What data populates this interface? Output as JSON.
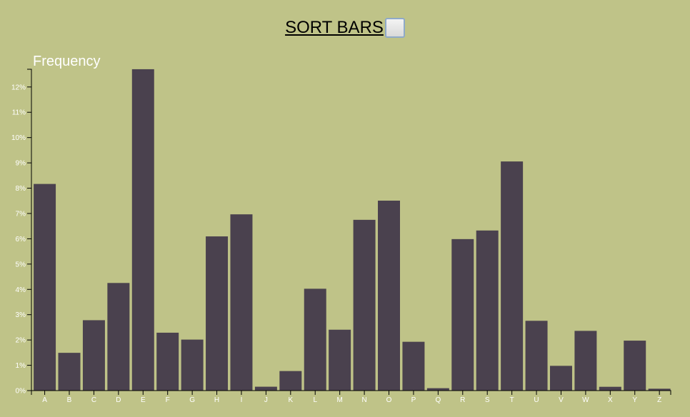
{
  "controls": {
    "sort_label": "SORT BARS",
    "sort_checked": false
  },
  "colors": {
    "background": "#BFC388",
    "bar": "#4A414E",
    "text": "#FFFFFF"
  },
  "chart_data": {
    "type": "bar",
    "ylabel": "Frequency",
    "xlabel": "",
    "title": "",
    "ylim": [
      0,
      0.127
    ],
    "yticks": [
      0,
      0.01,
      0.02,
      0.03,
      0.04,
      0.05,
      0.06,
      0.07,
      0.08,
      0.09,
      0.1,
      0.11,
      0.12
    ],
    "ytick_labels": [
      "0%",
      "1%",
      "2%",
      "3%",
      "4%",
      "5%",
      "6%",
      "7%",
      "8%",
      "9%",
      "10%",
      "11%",
      "12%"
    ],
    "grid": false,
    "categories": [
      "A",
      "B",
      "C",
      "D",
      "E",
      "F",
      "G",
      "H",
      "I",
      "J",
      "K",
      "L",
      "M",
      "N",
      "O",
      "P",
      "Q",
      "R",
      "S",
      "T",
      "U",
      "V",
      "W",
      "X",
      "Y",
      "Z"
    ],
    "values": [
      0.08167,
      0.01492,
      0.02782,
      0.04253,
      0.12702,
      0.02288,
      0.02015,
      0.06094,
      0.06966,
      0.00153,
      0.00772,
      0.04025,
      0.02406,
      0.06749,
      0.07507,
      0.01929,
      0.00095,
      0.05987,
      0.06327,
      0.09056,
      0.02758,
      0.00978,
      0.0236,
      0.0015,
      0.01974,
      0.00074
    ]
  }
}
